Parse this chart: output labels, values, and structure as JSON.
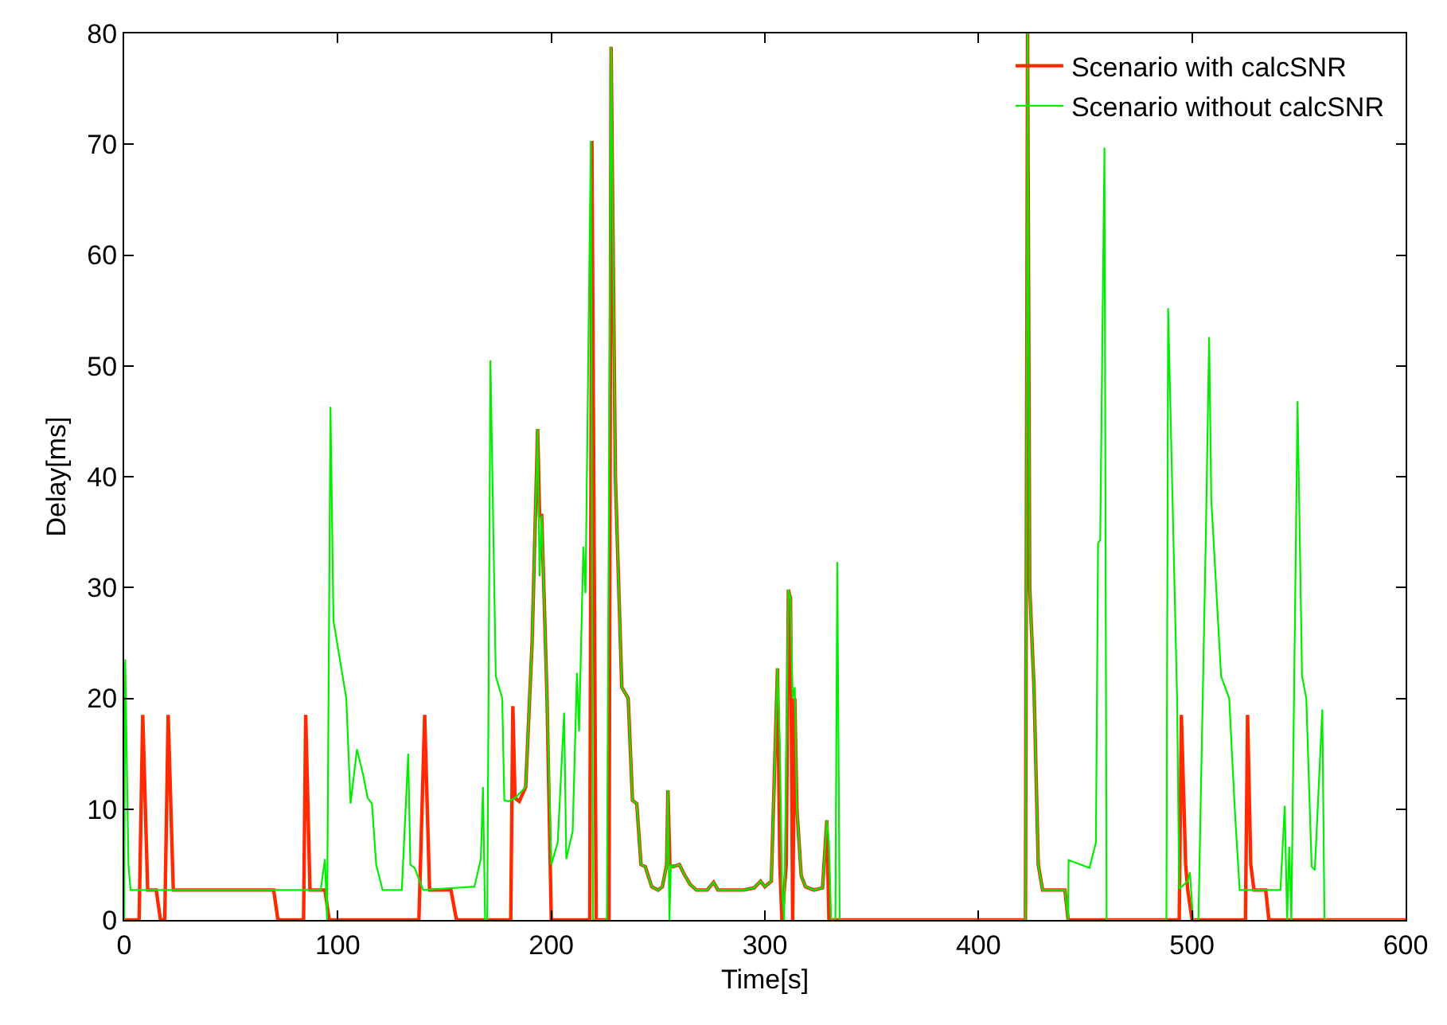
{
  "chart_data": {
    "type": "line",
    "xlabel": "Time[s]",
    "ylabel": "Delay[ms]",
    "xlim": [
      0,
      600
    ],
    "xticks": [
      0,
      100,
      200,
      300,
      400,
      500,
      600
    ],
    "ylim": [
      0,
      80
    ],
    "yticks": [
      0,
      10,
      20,
      30,
      40,
      50,
      60,
      70,
      80
    ],
    "legend": "top right",
    "marker": "none",
    "line_style": "solid",
    "series": [
      {
        "name": "Scenario with calcSNR",
        "color": "#ff2a00",
        "x": [
          0,
          7,
          8.7,
          11,
          15,
          17,
          19,
          20.6,
          23,
          70,
          72,
          84,
          85,
          87,
          94,
          96,
          138,
          140.7,
          143,
          153,
          155.6,
          181,
          182,
          183,
          185,
          188,
          191,
          193.6,
          194.5,
          195.5,
          198,
          200,
          218,
          219,
          221,
          227,
          228,
          230,
          233,
          236,
          238,
          240,
          242,
          244,
          247,
          250,
          252,
          254,
          254.6,
          255.5,
          257,
          260,
          262,
          265,
          268,
          270,
          273,
          276,
          278,
          282,
          286,
          290,
          295,
          298,
          300,
          303,
          305.9,
          307,
          308,
          310,
          311,
          312,
          313,
          314,
          315,
          317,
          319,
          323,
          327,
          329,
          330,
          331,
          422,
          423,
          424,
          426,
          428,
          430,
          440.5,
          442,
          494,
          495,
          497,
          498,
          500,
          525,
          526,
          527.5,
          529,
          534.5,
          536,
          600
        ],
        "values": [
          0,
          0,
          18.5,
          2.7,
          2.7,
          0,
          0,
          18.5,
          2.7,
          2.7,
          0,
          0,
          18.5,
          2.7,
          2.7,
          0,
          0,
          18.5,
          2.7,
          2.7,
          0,
          0,
          19.3,
          11,
          10.7,
          12,
          25,
          44.3,
          36.5,
          36.5,
          20,
          0,
          0,
          70.3,
          0,
          0,
          78.8,
          40,
          21,
          20,
          10.8,
          10.5,
          5,
          4.8,
          3,
          2.7,
          3,
          5,
          11.7,
          5,
          4.8,
          5,
          4.2,
          3.2,
          2.7,
          2.7,
          2.7,
          3.4,
          2.7,
          2.7,
          2.7,
          2.7,
          2.9,
          3.5,
          3.0,
          3.5,
          22.7,
          5,
          0,
          5,
          29.8,
          29,
          0,
          20,
          10,
          4,
          3,
          2.7,
          2.9,
          9,
          0,
          0,
          0,
          80,
          30,
          21,
          5,
          2.7,
          2.7,
          0,
          0,
          18.5,
          5,
          2.7,
          0,
          0,
          18.5,
          5,
          2.7,
          2.7,
          0,
          0
        ]
      },
      {
        "name": "Scenario without calcSNR",
        "color": "#00ee00",
        "x": [
          0,
          0.5,
          2,
          3,
          92,
          94,
          95,
          96.6,
          98,
          104,
          106,
          109,
          112,
          114,
          116,
          118,
          121,
          130,
          133,
          134,
          136,
          140,
          164,
          167,
          168,
          169,
          170,
          171.5,
          174,
          177,
          178,
          180,
          183,
          188,
          191,
          193.6,
          194.5,
          195.5,
          198,
          200,
          203,
          206,
          207,
          210,
          212,
          213,
          215,
          216,
          218.5,
          219.5,
          226,
          228,
          230,
          233,
          236,
          238,
          240,
          242,
          244,
          247,
          250,
          252,
          254,
          254.6,
          255.3,
          256,
          257,
          260,
          262,
          265,
          268,
          270,
          273,
          276,
          278,
          282,
          286,
          290,
          295,
          298,
          300,
          303,
          305.9,
          307,
          308,
          309,
          311,
          312,
          313,
          314,
          315,
          317,
          319,
          323,
          327,
          329,
          330,
          331,
          333,
          333.9,
          335,
          422,
          423,
          424,
          426,
          428,
          430,
          440.5,
          442,
          442.2,
          452,
          455,
          456,
          457,
          459,
          460,
          488,
          488.8,
          493,
          494,
          498,
          499,
          500.5,
          503,
          506.5,
          508,
          509,
          513.6,
          517.4,
          520,
          522.3,
          541.4,
          543.4,
          544.5,
          545.5,
          546.5,
          549.4,
          551.5,
          553.5,
          556,
          557.5,
          561,
          562,
          600
        ],
        "values": [
          0,
          23.5,
          5,
          2.7,
          2.7,
          5.5,
          0,
          46.3,
          27,
          20,
          10.5,
          15.4,
          13,
          11,
          10.5,
          5,
          2.7,
          2.7,
          15,
          5,
          4.7,
          2.7,
          3,
          5.5,
          12,
          0,
          0,
          50.5,
          22,
          20,
          10.8,
          10.7,
          11,
          12,
          25,
          44.3,
          31,
          36.5,
          20,
          5,
          7,
          18.7,
          5.5,
          8,
          22.3,
          17,
          33.7,
          29.5,
          70.3,
          0,
          0,
          78.8,
          40,
          21,
          20,
          10.8,
          10.5,
          5,
          4.8,
          3,
          2.7,
          3,
          5,
          11.7,
          0,
          5,
          4.8,
          5,
          4.2,
          3.2,
          2.7,
          2.7,
          2.7,
          3.4,
          2.7,
          2.7,
          2.7,
          2.7,
          2.9,
          3.5,
          3,
          3.5,
          22.7,
          16,
          3,
          0,
          29.8,
          29,
          20,
          21,
          10,
          4,
          3,
          2.7,
          2.9,
          9,
          7,
          0,
          0,
          32.3,
          0,
          0,
          80,
          30,
          21,
          5,
          2.7,
          2.7,
          0,
          5.4,
          4.7,
          7,
          34,
          34.3,
          69.7,
          0,
          0,
          55.2,
          20,
          2.8,
          3.5,
          4.3,
          0,
          0,
          35,
          52.6,
          38,
          22,
          20,
          10,
          2.7,
          2.7,
          10.3,
          0,
          6.6,
          0,
          46.8,
          22,
          20,
          4.8,
          4.5,
          19,
          0,
          0
        ]
      }
    ]
  }
}
